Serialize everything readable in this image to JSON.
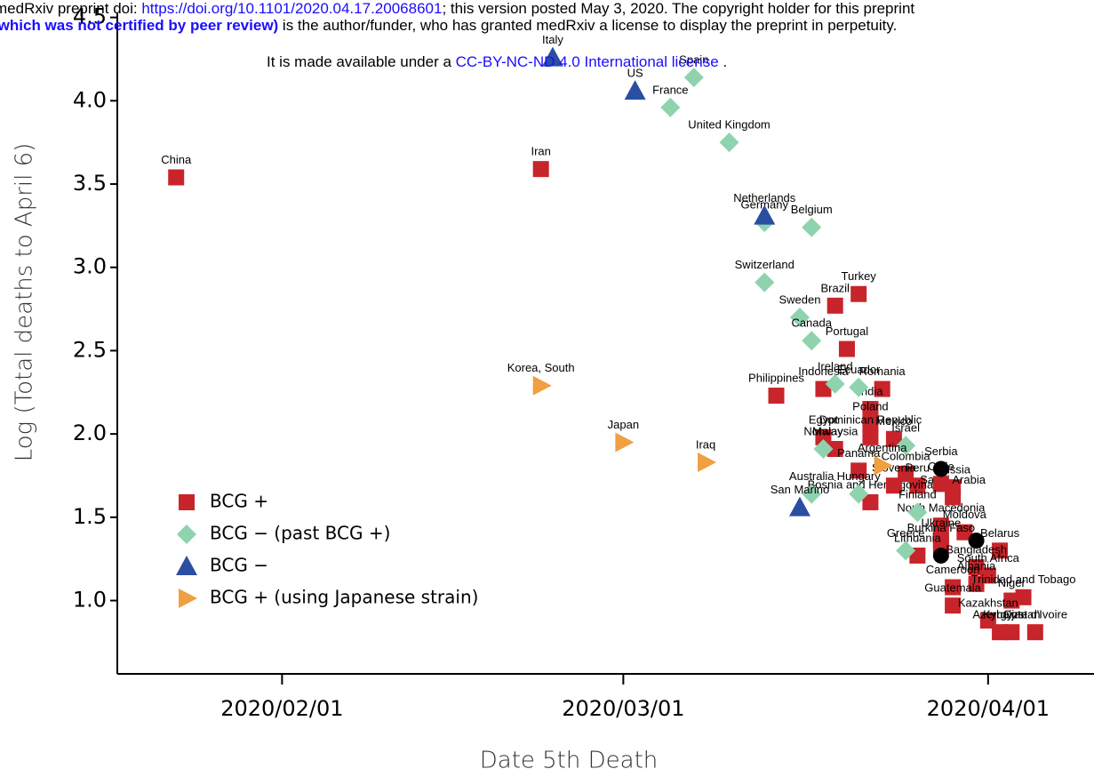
{
  "header": {
    "line1": {
      "prefix": "medRxiv preprint doi: ",
      "link": "https://doi.org/10.1101/2020.04.17.20068601",
      "suffix": "; this version posted May 3, 2020. The copyright holder for this preprint"
    },
    "line2": {
      "bold": "(which was not certified by peer review)",
      "text": " is the author/funder, who has granted medRxiv a license to display the preprint in perpetuity."
    },
    "line3": {
      "prefix": "It is made available under a ",
      "link": "CC-BY-NC-ND 4.0 International license",
      "suffix": " ."
    }
  },
  "chart_data": {
    "type": "scatter",
    "x_label": "Date 5th Death",
    "y_label": "Log (Total deaths to April 6)",
    "xlim": [
      "2020/01/18",
      "2020/04/10"
    ],
    "xticks": [
      "2020/02/01",
      "2020/03/01",
      "2020/04/01"
    ],
    "ylim": [
      0.56,
      4.53
    ],
    "yticks": [
      {
        "value": 1,
        "label": "1.0"
      },
      1.5,
      {
        "value": 2,
        "label": "2.0"
      },
      2.5,
      {
        "value": 3,
        "label": "3.0"
      },
      3.5,
      {
        "value": 4,
        "label": "4.0"
      },
      4.5
    ],
    "legend": "lower left",
    "series": [
      {
        "name": "BCG +",
        "color": "#c8242b",
        "marker": "square",
        "x": [
          "2020/01/23",
          "2020/02/23",
          "2020/03/14",
          "2020/03/19",
          "2020/03/21",
          "2020/03/20",
          "2020/03/18",
          "2020/03/23",
          "2020/03/22",
          "2020/03/22",
          "2020/03/22",
          "2020/03/24",
          "2020/03/18",
          "2020/03/19",
          "2020/03/21",
          "2020/03/25",
          "2020/03/29",
          "2020/03/26",
          "2020/03/29",
          "2020/03/28",
          "2020/03/22",
          "2020/03/24",
          "2020/03/30",
          "2020/03/28",
          "2020/03/28",
          "2020/03/28",
          "2020/03/26",
          "2020/04/02",
          "2020/03/31",
          "2020/04/01",
          "2020/03/31",
          "2020/03/29",
          "2020/04/04",
          "2020/03/29",
          "2020/04/03",
          "2020/04/01",
          "2020/04/03",
          "2020/04/02",
          "2020/04/05"
        ],
        "values": [
          3.54,
          3.59,
          2.23,
          2.77,
          2.84,
          2.51,
          2.27,
          2.27,
          2.15,
          2.06,
          1.98,
          1.97,
          1.98,
          1.91,
          1.78,
          1.76,
          1.68,
          1.69,
          1.62,
          1.7,
          1.59,
          1.69,
          1.41,
          1.45,
          1.36,
          1.33,
          1.27,
          1.3,
          1.2,
          1.15,
          1.1,
          1.08,
          1.02,
          0.97,
          1.0,
          0.88,
          0.81,
          0.81,
          0.81
        ],
        "labels": [
          "China",
          "Iran",
          "Philippines",
          "Brazil",
          "Turkey",
          "Portugal",
          "Indonesia",
          "Romania",
          "India",
          "Poland",
          "Dominican Republic",
          "Mexico",
          "Egypt",
          "Malaysia",
          "Panama",
          "Colombia",
          "Russia",
          "Peru",
          "Saudi Arabia",
          "Chile",
          "Bosnia and Herzegovina",
          "Slovenia",
          "Moldova",
          "North Macedonia",
          "Ukraine",
          "Burkina Faso",
          "Lithuania",
          "Belarus",
          "Bangladesh",
          "South Africa",
          "Albania",
          "Cameroon",
          "Trinidad and Tobago",
          "Guatemala",
          "Niger",
          "Kazakhstan",
          "Kyrgyzstan",
          "Azerbaijan",
          "Cote d'Ivoire"
        ]
      },
      {
        "name": "BCG − (past BCG +)",
        "color": "#8fd3ae",
        "marker": "diamond",
        "x": [
          "2020/03/07",
          "2020/03/05",
          "2020/03/10",
          "2020/03/13",
          "2020/03/17",
          "2020/03/13",
          "2020/03/16",
          "2020/03/17",
          "2020/03/19",
          "2020/03/21",
          "2020/03/18",
          "2020/03/25",
          "2020/03/17",
          "2020/03/21",
          "2020/03/26",
          "2020/03/25"
        ],
        "values": [
          4.14,
          3.96,
          3.75,
          3.27,
          3.24,
          2.91,
          2.7,
          2.56,
          2.3,
          2.28,
          1.91,
          1.93,
          1.64,
          1.64,
          1.53,
          1.3
        ],
        "labels": [
          "Spain",
          "France",
          "United Kingdom",
          "Germany",
          "Belgium",
          "Switzerland",
          "Sweden",
          "Canada",
          "Ireland",
          "Ecuador",
          "Norway",
          "Israel",
          "Australia",
          "Hungary",
          "Finland",
          "Greece"
        ]
      },
      {
        "name": "BCG −",
        "color": "#2a4ea2",
        "marker": "triangle-up",
        "x": [
          "2020/02/24",
          "2020/03/02",
          "2020/03/13",
          "2020/03/16"
        ],
        "values": [
          4.26,
          4.06,
          3.31,
          1.56
        ],
        "labels": [
          "Italy",
          "US",
          "Netherlands",
          "San Marino"
        ]
      },
      {
        "name": "BCG + (using Japanese strain)",
        "color": "#f0a040",
        "marker": "triangle-right",
        "x": [
          "2020/02/23",
          "2020/03/01",
          "2020/03/08",
          "2020/03/23"
        ],
        "values": [
          2.29,
          1.95,
          1.83,
          1.81
        ],
        "labels": [
          "Korea, South",
          "Japan",
          "Iraq",
          "Argentina"
        ]
      },
      {
        "color": "#000000",
        "marker": "circle",
        "x": [
          "2020/03/28",
          "2020/03/31",
          "2020/03/28"
        ],
        "values": [
          1.79,
          1.36,
          1.27
        ],
        "labels": [
          "Serbia",
          null,
          null
        ]
      }
    ]
  }
}
